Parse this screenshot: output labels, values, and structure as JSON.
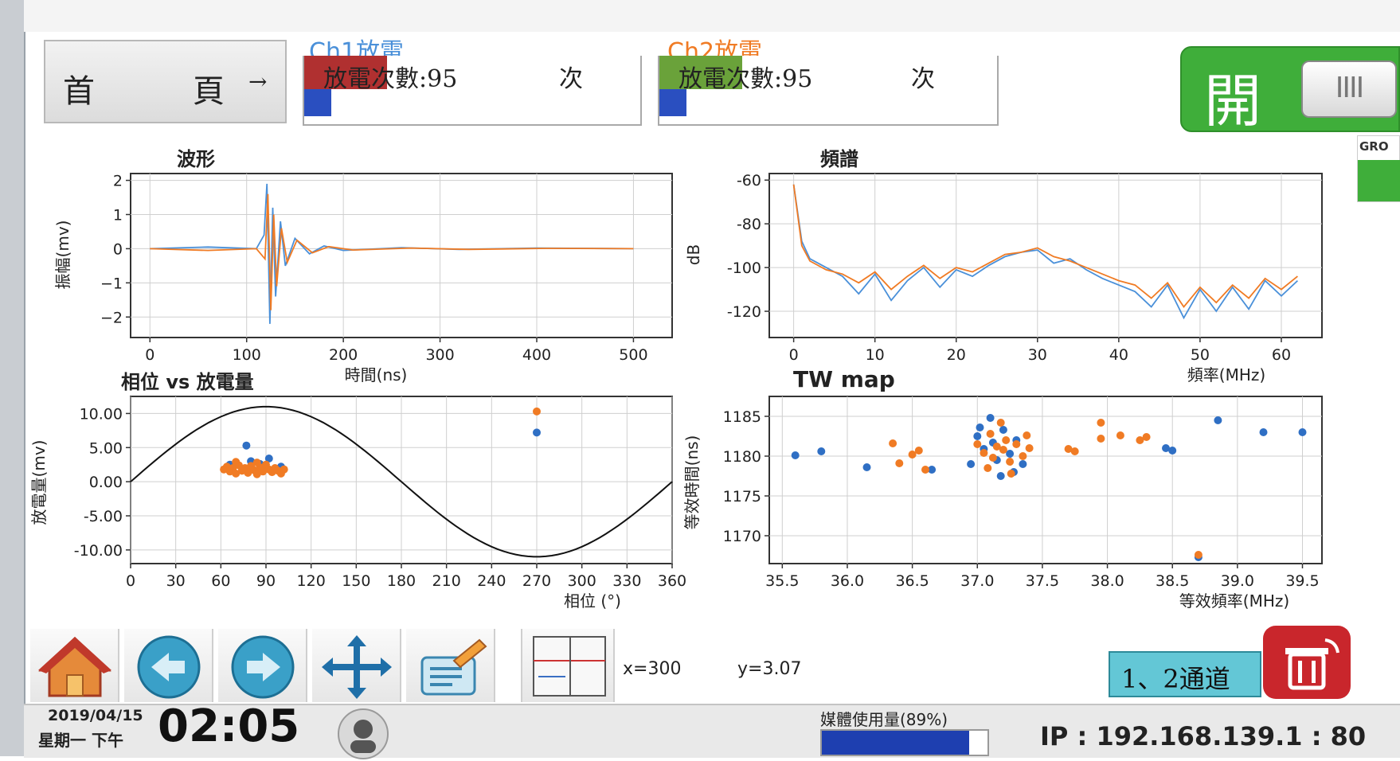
{
  "nav": {
    "home_label_1": "首",
    "home_label_2": "頁",
    "home_arrow": "→"
  },
  "ch1": {
    "title": "Ch1放電",
    "count_label": "放電次數:95",
    "unit": "次",
    "color": "#4a90d9",
    "fill": "#b03030"
  },
  "ch2": {
    "title": "Ch2放電",
    "count_label": "放電次數:95",
    "unit": "次",
    "color": "#f07b24",
    "fill": "#6aa23a"
  },
  "switch": {
    "label": "開",
    "knob": "IIII"
  },
  "side": {
    "label": "GRO"
  },
  "plots": {
    "waveform_title": "波形",
    "spectrum_title": "頻譜",
    "phase_title": "相位 vs 放電量",
    "twmap_title": "TW map"
  },
  "chart_data": [
    {
      "type": "line",
      "title": "波形",
      "xlabel": "時間(ns)",
      "ylabel": "振幅(mv)",
      "xlim": [
        -20,
        540
      ],
      "ylim": [
        -2.6,
        2.2
      ],
      "xticks": [
        0,
        100,
        200,
        300,
        400,
        500
      ],
      "yticks": [
        2,
        1,
        0,
        -1,
        -2
      ],
      "ytick_labels": [
        "2",
        "1",
        "0",
        "−1",
        "−2"
      ],
      "grid": true,
      "series": [
        {
          "color": "#4a90d9",
          "x": [
            0,
            60,
            110,
            118,
            121,
            124,
            127,
            130,
            135,
            140,
            150,
            165,
            180,
            200,
            260,
            320,
            400,
            500
          ],
          "y": [
            0,
            0.05,
            0,
            0.4,
            1.9,
            -2.2,
            1.2,
            -1.4,
            0.8,
            -0.5,
            0.3,
            -0.15,
            0.08,
            -0.05,
            0.03,
            -0.02,
            0.02,
            0
          ]
        },
        {
          "color": "#f07b24",
          "x": [
            0,
            60,
            110,
            119,
            122,
            125,
            128,
            131,
            136,
            142,
            152,
            168,
            185,
            210,
            270,
            330,
            410,
            500
          ],
          "y": [
            0,
            -0.05,
            0,
            -0.3,
            1.6,
            -1.8,
            1.0,
            -1.1,
            0.6,
            -0.4,
            0.25,
            -0.12,
            0.06,
            -0.04,
            0.02,
            -0.02,
            0.01,
            0
          ]
        }
      ]
    },
    {
      "type": "line",
      "title": "頻譜",
      "xlabel": "頻率(MHz)",
      "ylabel": "dB",
      "xlim": [
        -3,
        65
      ],
      "ylim": [
        -132,
        -57
      ],
      "xticks": [
        0,
        10,
        20,
        30,
        40,
        50,
        60
      ],
      "yticks": [
        -60,
        -80,
        -100,
        -120
      ],
      "grid": true,
      "series": [
        {
          "color": "#4a90d9",
          "x": [
            0,
            1,
            2,
            4,
            6,
            8,
            10,
            12,
            14,
            16,
            18,
            20,
            22,
            24,
            26,
            28,
            30,
            32,
            34,
            36,
            38,
            40,
            42,
            44,
            46,
            48,
            50,
            52,
            54,
            56,
            58,
            60,
            62
          ],
          "y": [
            -62,
            -88,
            -96,
            -100,
            -104,
            -112,
            -103,
            -115,
            -106,
            -100,
            -109,
            -101,
            -104,
            -99,
            -95,
            -93,
            -92,
            -98,
            -96,
            -101,
            -105,
            -108,
            -111,
            -118,
            -108,
            -123,
            -110,
            -120,
            -109,
            -119,
            -106,
            -113,
            -106
          ]
        },
        {
          "color": "#f07b24",
          "x": [
            0,
            1,
            2,
            4,
            6,
            8,
            10,
            12,
            14,
            16,
            18,
            20,
            22,
            24,
            26,
            28,
            30,
            32,
            34,
            36,
            38,
            40,
            42,
            44,
            46,
            48,
            50,
            52,
            54,
            56,
            58,
            60,
            62
          ],
          "y": [
            -62,
            -90,
            -97,
            -101,
            -103,
            -107,
            -102,
            -110,
            -104,
            -99,
            -105,
            -100,
            -102,
            -98,
            -94,
            -93,
            -91,
            -95,
            -97,
            -100,
            -103,
            -106,
            -108,
            -114,
            -107,
            -118,
            -109,
            -116,
            -108,
            -114,
            -105,
            -110,
            -104
          ]
        }
      ]
    },
    {
      "type": "scatter",
      "title": "相位 vs 放電量",
      "xlabel": "相位 (°)",
      "ylabel": "放電量(mv)",
      "xlim": [
        0,
        360
      ],
      "ylim": [
        -12,
        12.5
      ],
      "xticks": [
        0,
        30,
        60,
        90,
        120,
        150,
        180,
        210,
        240,
        270,
        300,
        330,
        360
      ],
      "yticks": [
        10,
        5,
        0,
        -5,
        -10
      ],
      "ytick_labels": [
        "10.00",
        "5.00",
        "0.00",
        "-5.00",
        "-10.00"
      ],
      "grid": true,
      "sine": {
        "color": "#111111",
        "amplitude": 11,
        "period": 360
      },
      "series": [
        {
          "color": "#2f6fc4",
          "points": [
            [
              77,
              5.3
            ],
            [
              80,
              3.0
            ],
            [
              86,
              2.6
            ],
            [
              92,
              3.4
            ],
            [
              100,
              2.2
            ],
            [
              66,
              2.5
            ],
            [
              270,
              7.2
            ]
          ]
        },
        {
          "color": "#f07b24",
          "points": [
            [
              62,
              1.8
            ],
            [
              64,
              2.2
            ],
            [
              66,
              1.5
            ],
            [
              68,
              2.0
            ],
            [
              70,
              1.2
            ],
            [
              72,
              2.4
            ],
            [
              74,
              1.6
            ],
            [
              76,
              2.0
            ],
            [
              78,
              1.3
            ],
            [
              80,
              2.3
            ],
            [
              82,
              1.7
            ],
            [
              84,
              1.1
            ],
            [
              86,
              2.1
            ],
            [
              88,
              1.5
            ],
            [
              90,
              2.5
            ],
            [
              92,
              1.8
            ],
            [
              94,
              1.4
            ],
            [
              96,
              2.0
            ],
            [
              98,
              1.6
            ],
            [
              100,
              1.2
            ],
            [
              102,
              1.8
            ],
            [
              84,
              2.8
            ],
            [
              70,
              2.9
            ],
            [
              270,
              10.3
            ]
          ]
        }
      ]
    },
    {
      "type": "scatter",
      "title": "TW map",
      "xlabel": "等效頻率(MHz)",
      "ylabel": "等效時間(ns)",
      "xlim": [
        35.4,
        39.65
      ],
      "ylim": [
        1166.5,
        1187.5
      ],
      "xticks": [
        35.5,
        36.0,
        36.5,
        37.0,
        37.5,
        38.0,
        38.5,
        39.0,
        39.5
      ],
      "xtick_labels": [
        "35.5",
        "36.0",
        "36.5",
        "37.0",
        "37.5",
        "38.0",
        "38.5",
        "39.0",
        "39.5"
      ],
      "yticks": [
        1185,
        1180,
        1175,
        1170
      ],
      "grid": true,
      "series": [
        {
          "color": "#2f6fc4",
          "points": [
            [
              35.6,
              1180.1
            ],
            [
              35.8,
              1180.6
            ],
            [
              36.15,
              1178.6
            ],
            [
              36.65,
              1178.3
            ],
            [
              36.95,
              1179.0
            ],
            [
              37.0,
              1182.5
            ],
            [
              37.05,
              1180.9
            ],
            [
              37.1,
              1184.8
            ],
            [
              37.12,
              1181.7
            ],
            [
              37.15,
              1179.5
            ],
            [
              37.2,
              1183.3
            ],
            [
              37.25,
              1180.3
            ],
            [
              37.28,
              1178.0
            ],
            [
              37.3,
              1182.0
            ],
            [
              37.35,
              1179.0
            ],
            [
              37.18,
              1177.5
            ],
            [
              37.02,
              1183.6
            ],
            [
              38.45,
              1181.0
            ],
            [
              38.5,
              1180.7
            ],
            [
              38.85,
              1184.5
            ],
            [
              39.2,
              1183.0
            ],
            [
              39.5,
              1183.0
            ],
            [
              38.7,
              1167.3
            ]
          ]
        },
        {
          "color": "#f07b24",
          "points": [
            [
              36.35,
              1181.6
            ],
            [
              36.4,
              1179.1
            ],
            [
              36.5,
              1180.2
            ],
            [
              36.6,
              1178.3
            ],
            [
              36.55,
              1180.7
            ],
            [
              37.0,
              1181.5
            ],
            [
              37.05,
              1180.4
            ],
            [
              37.1,
              1182.8
            ],
            [
              37.12,
              1179.8
            ],
            [
              37.15,
              1181.2
            ],
            [
              37.18,
              1184.2
            ],
            [
              37.2,
              1180.8
            ],
            [
              37.22,
              1182.0
            ],
            [
              37.25,
              1179.3
            ],
            [
              37.3,
              1181.5
            ],
            [
              37.35,
              1180.0
            ],
            [
              37.38,
              1182.6
            ],
            [
              37.4,
              1181.0
            ],
            [
              37.08,
              1178.5
            ],
            [
              37.26,
              1177.8
            ],
            [
              37.7,
              1180.9
            ],
            [
              37.75,
              1180.6
            ],
            [
              37.95,
              1184.2
            ],
            [
              37.95,
              1182.2
            ],
            [
              38.1,
              1182.6
            ],
            [
              38.25,
              1182.0
            ],
            [
              38.3,
              1182.4
            ],
            [
              38.7,
              1167.6
            ]
          ]
        }
      ]
    }
  ],
  "toolbar": {
    "coord_x": "x=300",
    "coord_y": "y=3.07",
    "channel_label": "1、2通道"
  },
  "status": {
    "date": "2019/04/15",
    "weekday": "星期一 下午",
    "time": "02:05",
    "mem_label": "媒體使用量(89%)",
    "mem_percent": 89,
    "ip": "IP : 192.168.139.1 : 80"
  }
}
